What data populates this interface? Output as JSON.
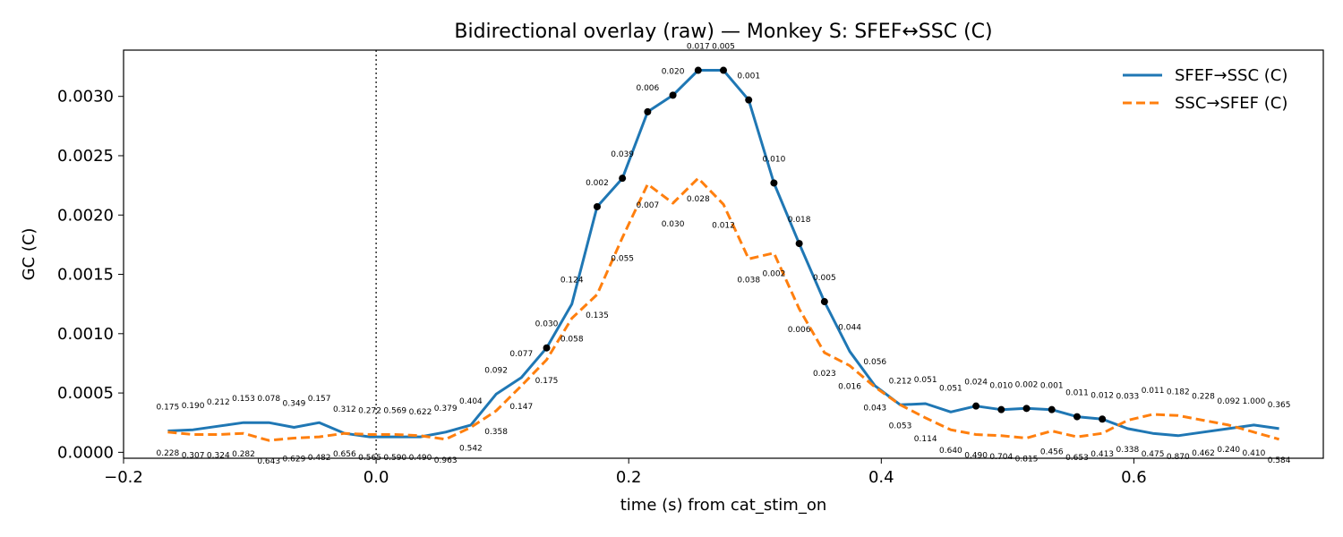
{
  "chart_data": {
    "type": "line",
    "title": "Bidirectional overlay (raw) — Monkey S: SFEF↔SSC (C)",
    "xlabel": "time (s) from cat_stim_on",
    "ylabel": "GC (C)",
    "xlim": [
      -0.2,
      0.75
    ],
    "ylim": [
      -5e-05,
      0.00339
    ],
    "x_ticks": [
      -0.2,
      0.0,
      0.2,
      0.4,
      0.6
    ],
    "x_tick_labels": [
      "−0.2",
      "0.0",
      "0.2",
      "0.4",
      "0.6"
    ],
    "y_ticks": [
      0.0,
      0.0005,
      0.001,
      0.0015,
      0.002,
      0.0025,
      0.003
    ],
    "y_tick_labels": [
      "0.0000",
      "0.0005",
      "0.0010",
      "0.0015",
      "0.0020",
      "0.0025",
      "0.0030"
    ],
    "event_line_x": 0.0,
    "legend_position": "top-right",
    "grid": false,
    "x": [
      -0.165,
      -0.145,
      -0.125,
      -0.105,
      -0.085,
      -0.065,
      -0.045,
      -0.025,
      -0.005,
      0.015,
      0.035,
      0.055,
      0.075,
      0.095,
      0.115,
      0.135,
      0.155,
      0.175,
      0.195,
      0.215,
      0.235,
      0.255,
      0.275,
      0.295,
      0.315,
      0.335,
      0.355,
      0.375,
      0.395,
      0.415,
      0.435,
      0.455,
      0.475,
      0.495,
      0.515,
      0.535,
      0.555,
      0.575,
      0.595,
      0.615,
      0.635,
      0.655,
      0.675,
      0.695,
      0.715
    ],
    "series": [
      {
        "name": "SFEF→SSC (C)",
        "color": "#1f77b4",
        "style": "solid",
        "values": [
          0.00018,
          0.00019,
          0.00022,
          0.00025,
          0.00025,
          0.00021,
          0.00025,
          0.00016,
          0.00013,
          0.00013,
          0.00013,
          0.00017,
          0.00023,
          0.00049,
          0.00063,
          0.00088,
          0.00125,
          0.00207,
          0.00231,
          0.00287,
          0.00301,
          0.00322,
          0.00322,
          0.00297,
          0.00227,
          0.00176,
          0.00127,
          0.00085,
          0.00056,
          0.0004,
          0.00041,
          0.00034,
          0.00039,
          0.00036,
          0.00037,
          0.00036,
          0.0003,
          0.00028,
          0.0002,
          0.00016,
          0.00014,
          0.00017,
          0.0002,
          0.00023,
          0.0002
        ],
        "pvalues": [
          "0.175",
          "0.190",
          "0.212",
          "0.153",
          "0.078",
          "0.349",
          "0.157",
          "0.312",
          "0.565",
          "0.590",
          "0.490",
          "0.379",
          "0.404",
          "0.092",
          "0.077",
          "0.030",
          "0.124",
          "0.002",
          "0.039",
          "0.006",
          "0.020",
          "0.017",
          "0.005",
          "0.001",
          "0.010",
          "0.018",
          "0.005",
          "0.044",
          "0.056",
          "0.212",
          "0.051",
          "0.051",
          "0.024",
          "0.010",
          "0.002",
          "0.001",
          "0.011",
          "0.012",
          "0.338",
          "0.475",
          "0.870",
          "0.462",
          "0.240",
          "1.000",
          "0.365"
        ],
        "significant_marker_indices": [
          15,
          17,
          18,
          19,
          20,
          21,
          22,
          23,
          24,
          25,
          26,
          32,
          33,
          34,
          35,
          36,
          37
        ]
      },
      {
        "name": "SSC→SFEF (C)",
        "color": "#ff7f0e",
        "style": "dashed",
        "values": [
          0.00017,
          0.00015,
          0.00015,
          0.00016,
          0.0001,
          0.00012,
          0.00013,
          0.00016,
          0.00015,
          0.00015,
          0.00014,
          0.00011,
          0.00021,
          0.00035,
          0.00056,
          0.00078,
          0.00113,
          0.00133,
          0.00181,
          0.00226,
          0.0021,
          0.00231,
          0.00209,
          0.00163,
          0.00168,
          0.00121,
          0.00084,
          0.00073,
          0.00055,
          0.0004,
          0.00029,
          0.00019,
          0.00015,
          0.00014,
          0.00012,
          0.00018,
          0.00013,
          0.00016,
          0.00027,
          0.00032,
          0.00031,
          0.00027,
          0.00023,
          0.00017,
          0.00011
        ],
        "pvalues": [
          "0.228",
          "0.307",
          "0.324",
          "0.282",
          "0.643",
          "0.629",
          "0.482",
          "0.656",
          "0.272",
          "0.569",
          "0.622",
          "0.963",
          "0.542",
          "0.358",
          "0.147",
          "0.175",
          "0.058",
          "0.135",
          "0.055",
          "0.007",
          "0.030",
          "0.028",
          "0.012",
          "0.038",
          "0.002",
          "0.006",
          "0.023",
          "0.016",
          "0.043",
          "0.053",
          "0.114",
          "0.640",
          "0.490",
          "0.704",
          "0.815",
          "0.456",
          "0.653",
          "0.413",
          "0.033",
          "0.011",
          "0.182",
          "0.228",
          "0.092",
          "0.410",
          "0.584"
        ]
      }
    ]
  }
}
